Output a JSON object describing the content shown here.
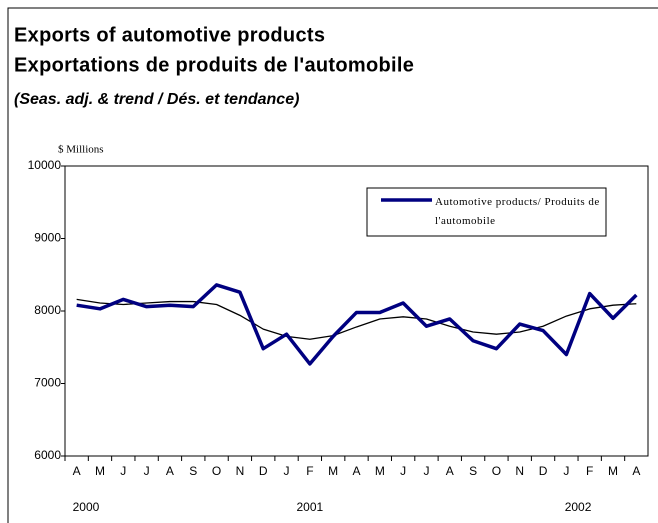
{
  "chart_data": {
    "type": "line",
    "title": "Exports of automotive products",
    "title2": "Exportations de produits de l'automobile",
    "subtitle": "(Seas. adj. & trend / Dés. et tendance)",
    "y_label": "$ Millions",
    "categories": [
      "A",
      "M",
      "J",
      "J",
      "A",
      "S",
      "O",
      "N",
      "D",
      "J",
      "F",
      "M",
      "A",
      "M",
      "J",
      "J",
      "A",
      "S",
      "O",
      "N",
      "D",
      "J",
      "F",
      "M",
      "A"
    ],
    "year_labels": [
      "2000",
      "2001",
      "2002"
    ],
    "series": [
      {
        "name": "Automotive products/ Produits de l'automobile",
        "color": "#000080",
        "values": [
          8080,
          8030,
          8160,
          8060,
          8080,
          8060,
          8360,
          8260,
          7480,
          7680,
          7270,
          7650,
          7980,
          7980,
          8110,
          7790,
          7890,
          7590,
          7480,
          7820,
          7730,
          7400,
          8240,
          7900,
          8220
        ]
      },
      {
        "color": "#000000",
        "values": [
          8160,
          8110,
          8090,
          8110,
          8130,
          8130,
          8090,
          7940,
          7750,
          7650,
          7610,
          7660,
          7780,
          7890,
          7920,
          7890,
          7790,
          7710,
          7680,
          7710,
          7790,
          7930,
          8030,
          8080,
          8100
        ]
      }
    ],
    "ylim": [
      6000,
      10000
    ],
    "yticks": [
      6000,
      7000,
      8000,
      9000,
      10000
    ],
    "grid": false,
    "legend": "upper right"
  }
}
